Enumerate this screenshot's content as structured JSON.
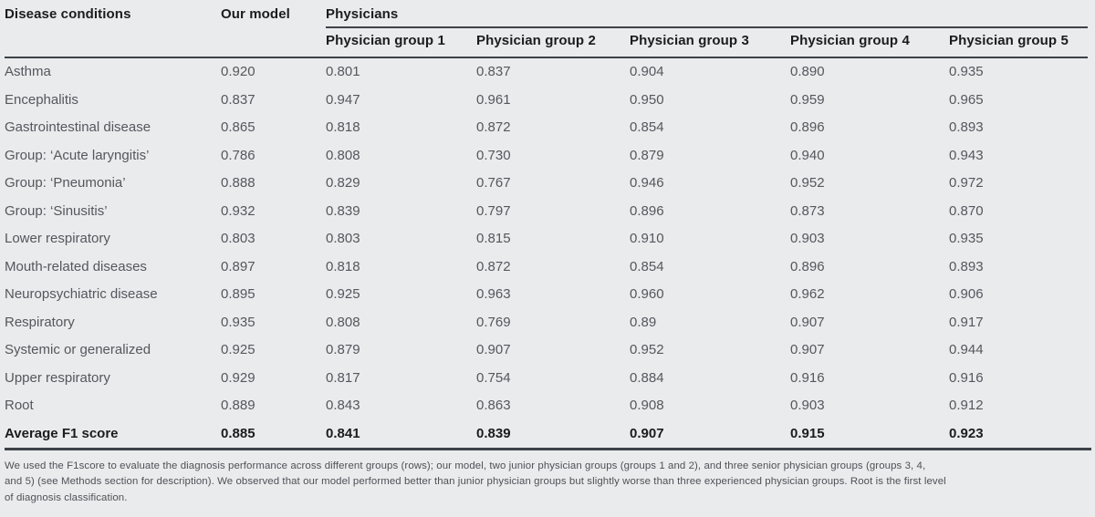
{
  "colors": {
    "background": "#e9ebed",
    "rule": "#3d4148",
    "header_text": "#1a1c1f",
    "body_text": "#54575c",
    "caption_text": "#4e5156"
  },
  "table": {
    "header": {
      "disease": "Disease conditions",
      "our_model": "Our model",
      "physicians": "Physicians",
      "physician_groups": [
        "Physician group 1",
        "Physician group 2",
        "Physician group 3",
        "Physician group 4",
        "Physician group 5"
      ]
    },
    "rows": [
      {
        "name": "Asthma",
        "values": [
          "0.920",
          "0.801",
          "0.837",
          "0.904",
          "0.890",
          "0.935"
        ]
      },
      {
        "name": "Encephalitis",
        "values": [
          "0.837",
          "0.947",
          "0.961",
          "0.950",
          "0.959",
          "0.965"
        ]
      },
      {
        "name": "Gastrointestinal disease",
        "values": [
          "0.865",
          "0.818",
          "0.872",
          "0.854",
          "0.896",
          "0.893"
        ]
      },
      {
        "name": "Group: ‘Acute laryngitis’",
        "values": [
          "0.786",
          "0.808",
          "0.730",
          "0.879",
          "0.940",
          "0.943"
        ]
      },
      {
        "name": "Group: ‘Pneumonia’",
        "values": [
          "0.888",
          "0.829",
          "0.767",
          "0.946",
          "0.952",
          "0.972"
        ]
      },
      {
        "name": "Group: ‘Sinusitis’",
        "values": [
          "0.932",
          "0.839",
          "0.797",
          "0.896",
          "0.873",
          "0.870"
        ]
      },
      {
        "name": "Lower respiratory",
        "values": [
          "0.803",
          "0.803",
          "0.815",
          "0.910",
          "0.903",
          "0.935"
        ]
      },
      {
        "name": "Mouth-related diseases",
        "values": [
          "0.897",
          "0.818",
          "0.872",
          "0.854",
          "0.896",
          "0.893"
        ]
      },
      {
        "name": "Neuropsychiatric disease",
        "values": [
          "0.895",
          "0.925",
          "0.963",
          "0.960",
          "0.962",
          "0.906"
        ]
      },
      {
        "name": "Respiratory",
        "values": [
          "0.935",
          "0.808",
          "0.769",
          "0.89",
          "0.907",
          "0.917"
        ]
      },
      {
        "name": "Systemic or generalized",
        "values": [
          "0.925",
          "0.879",
          "0.907",
          "0.952",
          "0.907",
          "0.944"
        ]
      },
      {
        "name": "Upper respiratory",
        "values": [
          "0.929",
          "0.817",
          "0.754",
          "0.884",
          "0.916",
          "0.916"
        ]
      },
      {
        "name": "Root",
        "values": [
          "0.889",
          "0.843",
          "0.863",
          "0.908",
          "0.903",
          "0.912"
        ]
      }
    ],
    "average_row": {
      "name": "Average F1 score",
      "values": [
        "0.885",
        "0.841",
        "0.839",
        "0.907",
        "0.915",
        "0.923"
      ]
    }
  },
  "caption_lines": [
    "We used the F1score to evaluate the diagnosis performance across different groups (rows); our model, two junior physician groups (groups 1 and 2), and three senior physician groups (groups 3, 4,",
    "and 5) (see Methods section for description). We observed that our model performed better than junior physician groups but slightly worse than three experienced physician groups. Root is the first level",
    "of diagnosis classification."
  ]
}
